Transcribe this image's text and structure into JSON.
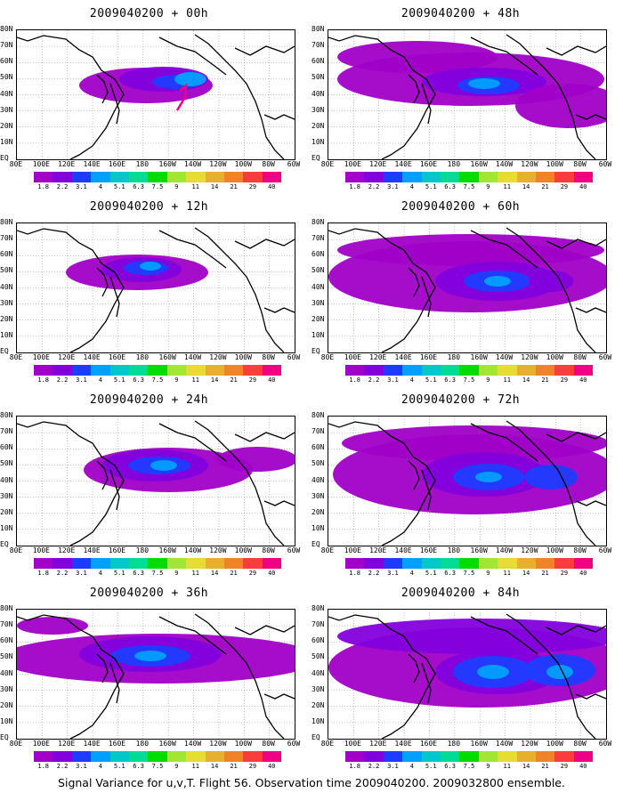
{
  "caption": "Signal Variance for u,v,T. Flight 56. Observation time 2009040200. 2009032800 ensemble.",
  "lat_labels": [
    "80N",
    "70N",
    "60N",
    "50N",
    "40N",
    "30N",
    "20N",
    "10N",
    "EQ"
  ],
  "lon_labels": [
    "80E",
    "100E",
    "120E",
    "140E",
    "160E",
    "180",
    "160W",
    "140W",
    "120W",
    "100W",
    "80W",
    "60W"
  ],
  "colorbar": {
    "labels": [
      "1.8",
      "2.2",
      "3.1",
      "4",
      "5.1",
      "6.3",
      "7.5",
      "9",
      "11",
      "14",
      "21",
      "29",
      "40"
    ],
    "colors": [
      "#a000c8",
      "#8200dc",
      "#1e3cff",
      "#00a0ff",
      "#00c8c8",
      "#00dc96",
      "#00dc00",
      "#a0e632",
      "#e6dc32",
      "#e6af2d",
      "#f08228",
      "#fa3c3c",
      "#f00082"
    ]
  },
  "panels": [
    {
      "title": "2009040200 + 00h"
    },
    {
      "title": "2009040200 + 48h"
    },
    {
      "title": "2009040200 + 12h"
    },
    {
      "title": "2009040200 + 60h"
    },
    {
      "title": "2009040200 + 24h"
    },
    {
      "title": "2009040200 + 72h"
    },
    {
      "title": "2009040200 + 36h"
    },
    {
      "title": "2009040200 + 84h"
    }
  ]
}
